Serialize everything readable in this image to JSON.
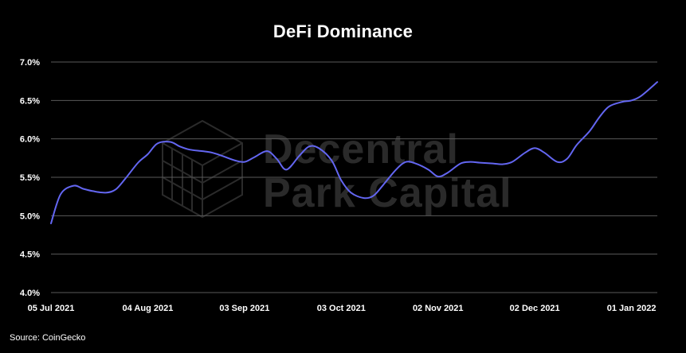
{
  "chart_data": {
    "type": "line",
    "title": "DeFi Dominance",
    "xlabel": "",
    "ylabel": "",
    "ylim": [
      4.0,
      7.0
    ],
    "y_ticks": [
      "4.0%",
      "4.5%",
      "5.0%",
      "5.5%",
      "6.0%",
      "6.5%",
      "7.0%"
    ],
    "y_tick_values": [
      4.0,
      4.5,
      5.0,
      5.5,
      6.0,
      6.5,
      7.0
    ],
    "x_ticks": [
      "05 Jul 2021",
      "04 Aug 2021",
      "03 Sep 2021",
      "03 Oct 2021",
      "02 Nov 2021",
      "02 Dec 2021",
      "01 Jan 2022"
    ],
    "x_tick_days": [
      0,
      30,
      60,
      90,
      120,
      150,
      180
    ],
    "x_range_days": [
      0,
      188
    ],
    "grid": true,
    "line_color": "#6366f1",
    "series": [
      {
        "x_days": [
          0,
          3,
          7,
          10,
          13,
          17,
          20,
          23,
          27,
          30,
          33,
          37,
          40,
          43,
          47,
          50,
          53,
          57,
          60,
          63,
          67,
          70,
          73,
          77,
          80,
          83,
          87,
          90,
          93,
          97,
          100,
          103,
          107,
          110,
          113,
          117,
          120,
          123,
          127,
          130,
          133,
          137,
          140,
          143,
          147,
          150,
          153,
          157,
          160,
          163,
          167,
          170,
          173,
          177,
          180,
          183,
          188
        ],
        "values": [
          4.9,
          5.28,
          5.39,
          5.35,
          5.32,
          5.3,
          5.34,
          5.48,
          5.69,
          5.8,
          5.94,
          5.96,
          5.9,
          5.86,
          5.84,
          5.82,
          5.78,
          5.72,
          5.7,
          5.76,
          5.84,
          5.74,
          5.6,
          5.78,
          5.9,
          5.88,
          5.72,
          5.46,
          5.3,
          5.23,
          5.26,
          5.4,
          5.6,
          5.7,
          5.68,
          5.6,
          5.51,
          5.56,
          5.68,
          5.7,
          5.69,
          5.68,
          5.67,
          5.7,
          5.82,
          5.88,
          5.82,
          5.7,
          5.74,
          5.92,
          6.1,
          6.28,
          6.42,
          6.48,
          6.5,
          6.56,
          6.74
        ]
      }
    ]
  },
  "watermark": {
    "line1": "Decentral",
    "line2": "Park Capital"
  },
  "source": "Source: CoinGecko"
}
